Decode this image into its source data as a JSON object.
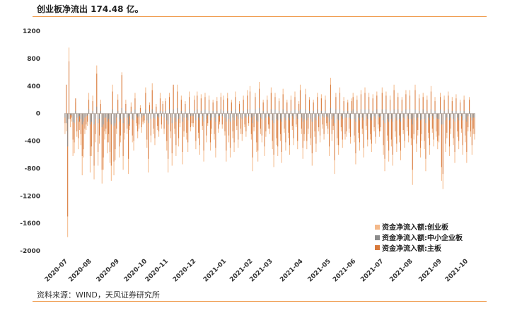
{
  "header": {
    "title": "创业板净流出 174.48 亿。"
  },
  "footer": {
    "source": "资料来源：WIND，天风证券研究所"
  },
  "colors": {
    "rule": "#ef9a4a",
    "series": [
      "#f4b98a",
      "#8c8c8c",
      "#d87a3c"
    ]
  },
  "chart_data": {
    "type": "bar",
    "stacked": true,
    "ylim": [
      -2000,
      1200
    ],
    "yticks": [
      1200,
      800,
      400,
      0,
      -400,
      -800,
      -1200,
      -1600,
      -2000
    ],
    "xticks": [
      "2020-07",
      "2020-08",
      "2020-09",
      "2020-10",
      "2020-11",
      "2020-12",
      "2021-01",
      "2021-02",
      "2021-03",
      "2021-04",
      "2021-05",
      "2021-06",
      "2021-07",
      "2021-08",
      "2021-09",
      "2021-10"
    ],
    "legend_position": "bottom-right",
    "series_names": [
      "资金净流入额:创业板",
      "资金净流入额:中小企业板",
      "资金净流入额:主板"
    ],
    "grid": false,
    "months": [
      {
        "label": "2020-07",
        "days": 18,
        "cyb": [
          -300,
          -260,
          -1800,
          960,
          -200,
          -120,
          -620,
          -580,
          160,
          -340,
          -520,
          -240,
          -460,
          -900,
          -640,
          -300,
          -240,
          -180
        ],
        "zxb": [
          -60,
          -140,
          -480,
          -80,
          -20,
          -30,
          -120,
          -140,
          40,
          -60,
          -120,
          -40,
          -80,
          -160,
          -120,
          -60,
          -40,
          -30
        ],
        "main": [
          -140,
          420,
          -1500,
          760,
          -80,
          -60,
          -380,
          -420,
          220,
          -260,
          -360,
          -120,
          -300,
          -620,
          -520,
          -220,
          -160,
          -120
        ]
      },
      {
        "label": "2020-08",
        "days": 21,
        "cyb": [
          300,
          -860,
          -620,
          260,
          -960,
          -420,
          700,
          -760,
          -440,
          200,
          -1020,
          -820,
          -380,
          -300,
          -580,
          -420,
          -720,
          -980,
          420,
          -900,
          -680
        ],
        "zxb": [
          60,
          -160,
          -120,
          40,
          -160,
          -80,
          100,
          -140,
          -80,
          40,
          -200,
          -160,
          -60,
          -60,
          -120,
          -80,
          -120,
          -160,
          60,
          -180,
          -140
        ],
        "main": [
          200,
          -620,
          -480,
          180,
          -760,
          -300,
          580,
          -560,
          -320,
          140,
          -820,
          -640,
          -260,
          -220,
          -420,
          -300,
          -560,
          -760,
          320,
          -700,
          -520
        ]
      },
      {
        "label": "2020-09",
        "days": 21,
        "cyb": [
          -300,
          280,
          -640,
          -420,
          600,
          -820,
          -380,
          200,
          -300,
          -880,
          -240,
          160,
          -420,
          -540,
          300,
          -180,
          -360,
          -220,
          120,
          -280,
          -160
        ],
        "zxb": [
          -60,
          40,
          -120,
          -80,
          80,
          -140,
          -60,
          40,
          -60,
          -160,
          -40,
          30,
          -80,
          -100,
          60,
          -30,
          -60,
          -40,
          20,
          -60,
          -30
        ],
        "main": [
          -220,
          200,
          -480,
          -320,
          560,
          -620,
          -280,
          140,
          -220,
          -660,
          -180,
          100,
          -320,
          -400,
          220,
          -140,
          -260,
          -160,
          80,
          -200,
          -120
        ]
      },
      {
        "label": "2020-10",
        "days": 16,
        "cyb": [
          -140,
          380,
          -500,
          -860,
          160,
          -420,
          440,
          -300,
          -460,
          140,
          -240,
          -340,
          300,
          -220,
          180,
          -300
        ],
        "zxb": [
          -30,
          60,
          -100,
          -140,
          30,
          -80,
          60,
          -60,
          -80,
          30,
          -40,
          -60,
          40,
          -40,
          30,
          -60
        ],
        "main": [
          -100,
          300,
          -380,
          -660,
          120,
          -320,
          340,
          -220,
          -360,
          100,
          -180,
          -260,
          220,
          -160,
          140,
          -220
        ]
      },
      {
        "label": "2020-11",
        "days": 21,
        "cyb": [
          220,
          -540,
          -860,
          300,
          -360,
          -760,
          380,
          -300,
          -620,
          420,
          -480,
          -200,
          260,
          -740,
          -340,
          180,
          -380,
          -560,
          320,
          -260,
          -180
        ],
        "zxb": [
          40,
          -100,
          -160,
          60,
          -60,
          -140,
          60,
          -60,
          -120,
          80,
          -80,
          -40,
          40,
          -120,
          -60,
          30,
          -60,
          -100,
          60,
          -40,
          -30
        ],
        "main": [
          180,
          -400,
          -660,
          240,
          -260,
          -580,
          420,
          -220,
          -460,
          320,
          -360,
          -140,
          200,
          -560,
          -260,
          140,
          -280,
          -420,
          240,
          -200,
          -140
        ]
      },
      {
        "label": "2020-12",
        "days": 23,
        "cyb": [
          -200,
          260,
          -520,
          320,
          -360,
          -600,
          280,
          -240,
          -700,
          300,
          -420,
          -180,
          260,
          -540,
          -300,
          200,
          -380,
          -640,
          240,
          -280,
          -160,
          300,
          -220
        ],
        "zxb": [
          -40,
          40,
          -100,
          60,
          -60,
          -100,
          40,
          -40,
          -120,
          60,
          -80,
          -30,
          40,
          -100,
          -60,
          40,
          -60,
          -120,
          40,
          -40,
          -30,
          60,
          -40
        ],
        "main": [
          -140,
          200,
          -400,
          260,
          -280,
          -460,
          220,
          -180,
          -540,
          240,
          -320,
          -140,
          200,
          -420,
          -220,
          160,
          -300,
          -500,
          180,
          -220,
          -120,
          240,
          -160
        ]
      },
      {
        "label": "2021-01",
        "days": 20,
        "cyb": [
          260,
          -320,
          -700,
          300,
          -420,
          -640,
          200,
          -360,
          -560,
          320,
          -240,
          -500,
          180,
          -300,
          -400,
          260,
          -200,
          -340,
          340,
          -180
        ],
        "zxb": [
          40,
          -60,
          -120,
          40,
          -80,
          -120,
          40,
          -60,
          -100,
          60,
          -40,
          -80,
          30,
          -60,
          -80,
          40,
          -40,
          -60,
          60,
          -40
        ],
        "main": [
          200,
          -260,
          -540,
          220,
          -320,
          -500,
          160,
          -260,
          -420,
          240,
          -180,
          -380,
          140,
          -220,
          -300,
          200,
          -160,
          -260,
          260,
          -140
        ]
      },
      {
        "label": "2021-02",
        "days": 15,
        "cyb": [
          400,
          -380,
          -840,
          -260,
          300,
          -560,
          -700,
          460,
          -300,
          -420,
          200,
          -620,
          -340,
          260,
          -220
        ],
        "zxb": [
          60,
          -60,
          -140,
          -40,
          60,
          -100,
          -120,
          80,
          -60,
          -80,
          40,
          -100,
          -60,
          40,
          -40
        ],
        "main": [
          320,
          -300,
          -640,
          -200,
          240,
          -420,
          -540,
          360,
          -220,
          -320,
          160,
          -480,
          -260,
          200,
          -160
        ]
      },
      {
        "label": "2021-03",
        "days": 23,
        "cyb": [
          -300,
          380,
          -520,
          -780,
          300,
          -460,
          -620,
          220,
          -400,
          -720,
          360,
          -280,
          -540,
          200,
          -360,
          -600,
          260,
          -240,
          -460,
          320,
          -200,
          -520,
          180
        ],
        "zxb": [
          -60,
          60,
          -100,
          -140,
          60,
          -80,
          -100,
          40,
          -80,
          -120,
          60,
          -60,
          -100,
          40,
          -60,
          -100,
          40,
          -40,
          -80,
          60,
          -40,
          -80,
          40
        ],
        "main": [
          -220,
          300,
          -400,
          -600,
          240,
          -360,
          -480,
          180,
          -300,
          -560,
          280,
          -220,
          -420,
          160,
          -280,
          -460,
          200,
          -180,
          -360,
          240,
          -160,
          -400,
          140
        ]
      },
      {
        "label": "2021-04",
        "days": 21,
        "cyb": [
          420,
          -300,
          -660,
          -400,
          360,
          -520,
          -300,
          240,
          -460,
          -760,
          200,
          -340,
          -560,
          300,
          -260,
          -420,
          280,
          -220,
          -380,
          260,
          -180
        ],
        "zxb": [
          60,
          -60,
          -120,
          -80,
          60,
          -100,
          -60,
          40,
          -80,
          -120,
          40,
          -60,
          -100,
          60,
          -40,
          -80,
          40,
          -40,
          -60,
          40,
          -40
        ],
        "main": [
          340,
          -220,
          -500,
          -300,
          280,
          -400,
          -220,
          200,
          -360,
          -580,
          160,
          -260,
          -440,
          240,
          -200,
          -320,
          220,
          -160,
          -300,
          200,
          -140
        ]
      },
      {
        "label": "2021-05",
        "days": 19,
        "cyb": [
          -300,
          -620,
          520,
          -400,
          -240,
          -880,
          300,
          -460,
          -600,
          380,
          -260,
          -500,
          240,
          -380,
          -340,
          200,
          -280,
          -440,
          220
        ],
        "zxb": [
          -60,
          -120,
          80,
          -80,
          -40,
          -140,
          60,
          -80,
          -100,
          60,
          -40,
          -80,
          40,
          -60,
          -60,
          40,
          -60,
          -80,
          40
        ],
        "main": [
          -220,
          -480,
          420,
          -300,
          -180,
          -680,
          240,
          -360,
          -460,
          300,
          -200,
          -380,
          180,
          -300,
          -260,
          160,
          -220,
          -340,
          180
        ]
      },
      {
        "label": "2021-06",
        "days": 21,
        "cyb": [
          300,
          -420,
          -740,
          260,
          -360,
          -540,
          340,
          -300,
          -640,
          380,
          -240,
          -480,
          300,
          -380,
          -560,
          280,
          -260,
          -440,
          320,
          -220,
          -340
        ],
        "zxb": [
          60,
          -80,
          -120,
          40,
          -60,
          -100,
          60,
          -60,
          -100,
          60,
          -40,
          -80,
          60,
          -60,
          -100,
          40,
          -40,
          -80,
          60,
          -40,
          -60
        ],
        "main": [
          240,
          -320,
          -580,
          200,
          -280,
          -420,
          280,
          -220,
          -500,
          300,
          -180,
          -380,
          240,
          -300,
          -440,
          220,
          -200,
          -340,
          260,
          -160,
          -260
        ]
      },
      {
        "label": "2021-07",
        "days": 22,
        "cyb": [
          -260,
          380,
          -600,
          -840,
          320,
          -400,
          -700,
          260,
          -480,
          -760,
          420,
          -340,
          -560,
          300,
          -420,
          -680,
          240,
          -300,
          -500,
          340,
          -260,
          -420
        ],
        "zxb": [
          -40,
          60,
          -100,
          -140,
          60,
          -80,
          -120,
          40,
          -80,
          -120,
          60,
          -60,
          -100,
          60,
          -80,
          -120,
          40,
          -60,
          -80,
          60,
          -40,
          -80
        ],
        "main": [
          -200,
          300,
          -460,
          -660,
          260,
          -320,
          -540,
          200,
          -380,
          -600,
          340,
          -260,
          -440,
          240,
          -320,
          -540,
          200,
          -240,
          -400,
          280,
          -200,
          -320
        ]
      },
      {
        "label": "2021-08",
        "days": 22,
        "cyb": [
          340,
          -460,
          -1040,
          -380,
          420,
          -560,
          -320,
          280,
          -640,
          -400,
          300,
          -520,
          -840,
          260,
          -360,
          -600,
          400,
          -280,
          -480,
          240,
          -340,
          -520
        ],
        "zxb": [
          60,
          -80,
          -160,
          -60,
          60,
          -100,
          -60,
          40,
          -100,
          -80,
          60,
          -80,
          -140,
          40,
          -60,
          -100,
          60,
          -40,
          -80,
          40,
          -60,
          -80
        ],
        "main": [
          260,
          -360,
          -820,
          -300,
          340,
          -440,
          -240,
          220,
          -500,
          -300,
          240,
          -400,
          -660,
          200,
          -280,
          -460,
          320,
          -220,
          -380,
          180,
          -260,
          -400
        ]
      },
      {
        "label": "2021-09",
        "days": 20,
        "cyb": [
          -420,
          300,
          -980,
          -1100,
          260,
          -560,
          -360,
          320,
          -620,
          -300,
          240,
          -460,
          -720,
          280,
          -340,
          -520,
          200,
          -280,
          -600,
          260
        ],
        "zxb": [
          -80,
          60,
          -160,
          -160,
          40,
          -100,
          -60,
          60,
          -100,
          -60,
          40,
          -80,
          -120,
          40,
          -60,
          -100,
          40,
          -40,
          -100,
          40
        ],
        "main": [
          -320,
          240,
          -780,
          -880,
          200,
          -440,
          -280,
          260,
          -480,
          -220,
          180,
          -360,
          -560,
          220,
          -260,
          -400,
          160,
          -220,
          -460,
          200
        ]
      },
      {
        "label": "2021-10",
        "days": 8,
        "cyb": [
          -420,
          -720,
          -260,
          240,
          -340,
          -600,
          -300,
          -380
        ],
        "zxb": [
          -80,
          -120,
          -40,
          40,
          -60,
          -100,
          -60,
          -60
        ],
        "main": [
          -320,
          -560,
          -200,
          200,
          -260,
          -460,
          -220,
          -300
        ]
      }
    ]
  }
}
